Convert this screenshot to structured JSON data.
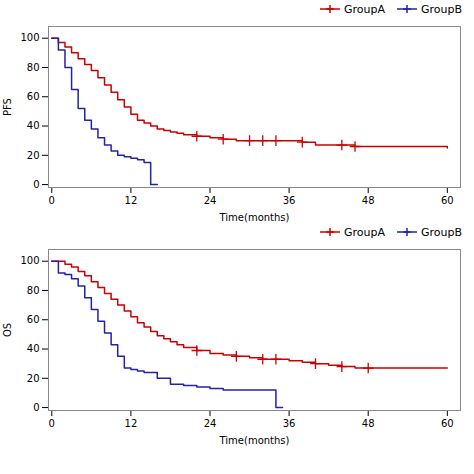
{
  "chart_data": [
    {
      "type": "step",
      "ylabel": "PFS",
      "xlabel": "Time(months)",
      "xlim": [
        -0.5,
        62
      ],
      "ylim": [
        -2,
        108
      ],
      "xticks": [
        0,
        12,
        24,
        36,
        48,
        60
      ],
      "yticks": [
        0,
        20,
        40,
        60,
        80,
        100
      ],
      "grid": false,
      "legend": "top-right",
      "series": [
        {
          "name": "GroupA",
          "color": "#CC0000",
          "marker": "plus",
          "x": [
            0,
            1,
            2,
            3,
            4,
            5,
            6,
            7,
            8,
            9,
            10,
            11,
            12,
            13,
            14,
            15,
            16,
            17,
            18,
            19,
            20,
            22,
            24,
            26,
            28,
            30,
            32,
            34,
            36,
            38,
            40,
            42,
            44,
            46,
            48,
            50,
            55,
            60
          ],
          "values": [
            100,
            97,
            94,
            90,
            86,
            82,
            78,
            73,
            68,
            63,
            58,
            53,
            48,
            44,
            42,
            40,
            38,
            37,
            36,
            35,
            34,
            33,
            32,
            31,
            30,
            30,
            30,
            30,
            30,
            29,
            27,
            27,
            27,
            26,
            26,
            26,
            26,
            25
          ],
          "censor_x": [
            22,
            26,
            30,
            32,
            34,
            38,
            44,
            46
          ],
          "censor_values": [
            33,
            31,
            30,
            30,
            30,
            29,
            27,
            26
          ]
        },
        {
          "name": "GroupB",
          "color": "#2222AA",
          "marker": "plus",
          "x": [
            0,
            1,
            2,
            3,
            4,
            5,
            6,
            7,
            8,
            9,
            10,
            11,
            12,
            13,
            14,
            15,
            16
          ],
          "values": [
            100,
            92,
            80,
            65,
            52,
            44,
            38,
            32,
            27,
            23,
            20,
            19,
            18,
            17,
            15,
            0,
            0
          ],
          "censor_x": [],
          "censor_values": []
        }
      ]
    },
    {
      "type": "step",
      "ylabel": "OS",
      "xlabel": "Time(months)",
      "xlim": [
        -0.5,
        62
      ],
      "ylim": [
        -2,
        108
      ],
      "xticks": [
        0,
        12,
        24,
        36,
        48,
        60
      ],
      "yticks": [
        0,
        20,
        40,
        60,
        80,
        100
      ],
      "grid": false,
      "legend": "top-right",
      "series": [
        {
          "name": "GroupA",
          "color": "#CC0000",
          "marker": "plus",
          "x": [
            0,
            1,
            2,
            3,
            4,
            5,
            6,
            7,
            8,
            9,
            10,
            11,
            12,
            13,
            14,
            15,
            16,
            17,
            18,
            19,
            20,
            22,
            24,
            26,
            28,
            30,
            32,
            34,
            36,
            38,
            40,
            42,
            44,
            46,
            48,
            50,
            55,
            60
          ],
          "values": [
            100,
            100,
            98,
            96,
            93,
            90,
            86,
            82,
            78,
            74,
            70,
            66,
            62,
            58,
            55,
            52,
            49,
            47,
            45,
            43,
            41,
            39,
            37,
            36,
            35,
            34,
            33,
            33,
            32,
            31,
            30,
            29,
            28,
            27,
            27,
            27,
            27,
            27
          ],
          "censor_x": [
            22,
            28,
            32,
            34,
            40,
            44,
            48
          ],
          "censor_values": [
            39,
            35,
            33,
            33,
            30,
            28,
            27
          ]
        },
        {
          "name": "GroupB",
          "color": "#2222AA",
          "marker": "plus",
          "x": [
            0,
            1,
            2,
            3,
            4,
            5,
            6,
            7,
            8,
            9,
            10,
            11,
            12,
            13,
            14,
            16,
            18,
            20,
            22,
            24,
            26,
            28,
            30,
            32,
            33,
            34,
            35
          ],
          "values": [
            100,
            92,
            91,
            88,
            83,
            75,
            67,
            59,
            51,
            43,
            35,
            27,
            26,
            25,
            24,
            20,
            16,
            15,
            14,
            13,
            12,
            12,
            12,
            12,
            12,
            0,
            0
          ],
          "censor_x": [],
          "censor_values": []
        }
      ]
    }
  ]
}
